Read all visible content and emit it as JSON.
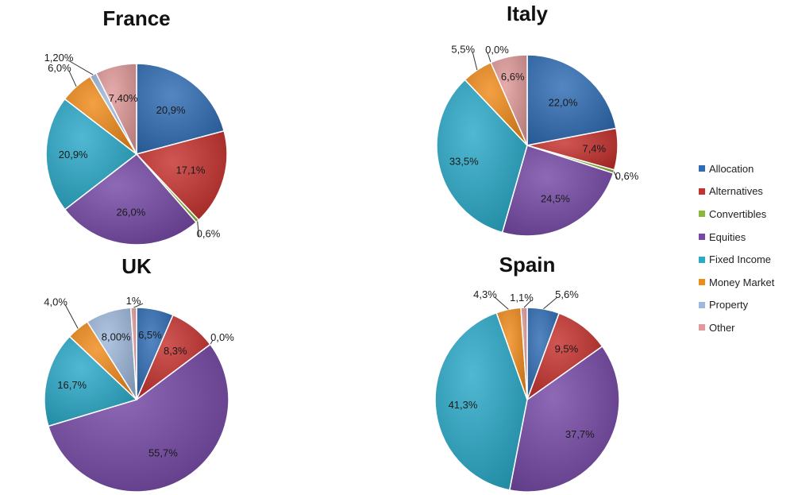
{
  "chart_data": [
    {
      "type": "pie",
      "title": "France",
      "slices": [
        {
          "category": "Allocation",
          "value": 20.9,
          "label": "20,9%"
        },
        {
          "category": "Alternatives",
          "value": 17.1,
          "label": "17,1%"
        },
        {
          "category": "Convertibles",
          "value": 0.6,
          "label": "0,6%"
        },
        {
          "category": "Equities",
          "value": 26.0,
          "label": "26,0%"
        },
        {
          "category": "Fixed Income",
          "value": 20.9,
          "label": "20,9%"
        },
        {
          "category": "Money Market",
          "value": 6.0,
          "label": "6,0%"
        },
        {
          "category": "Property",
          "value": 1.2,
          "label": "1,20%"
        },
        {
          "category": "Other",
          "value": 7.4,
          "label": "7,40%"
        }
      ]
    },
    {
      "type": "pie",
      "title": "Italy",
      "slices": [
        {
          "category": "Allocation",
          "value": 22.0,
          "label": "22,0%"
        },
        {
          "category": "Alternatives",
          "value": 7.4,
          "label": "7,4%"
        },
        {
          "category": "Convertibles",
          "value": 0.6,
          "label": "0,6%"
        },
        {
          "category": "Equities",
          "value": 24.5,
          "label": "24,5%"
        },
        {
          "category": "Fixed Income",
          "value": 33.5,
          "label": "33,5%"
        },
        {
          "category": "Money Market",
          "value": 5.5,
          "label": "5,5%"
        },
        {
          "category": "Property",
          "value": 0.0,
          "label": "0,0%"
        },
        {
          "category": "Other",
          "value": 6.6,
          "label": "6,6%"
        }
      ]
    },
    {
      "type": "pie",
      "title": "UK",
      "slices": [
        {
          "category": "Allocation",
          "value": 6.5,
          "label": "6,5%"
        },
        {
          "category": "Alternatives",
          "value": 8.3,
          "label": "8,3%"
        },
        {
          "category": "Convertibles",
          "value": 0.0,
          "label": "0,0%"
        },
        {
          "category": "Equities",
          "value": 55.7,
          "label": "55,7%"
        },
        {
          "category": "Fixed Income",
          "value": 16.7,
          "label": "16,7%"
        },
        {
          "category": "Money Market",
          "value": 4.0,
          "label": "4,0%"
        },
        {
          "category": "Property",
          "value": 8.0,
          "label": "8,00%"
        },
        {
          "category": "Other",
          "value": 1.0,
          "label": "1%"
        }
      ]
    },
    {
      "type": "pie",
      "title": "Spain",
      "slices": [
        {
          "category": "Allocation",
          "value": 5.6,
          "label": "5,6%"
        },
        {
          "category": "Alternatives",
          "value": 9.5,
          "label": "9,5%"
        },
        {
          "category": "Convertibles",
          "value": 0.0,
          "label": ""
        },
        {
          "category": "Equities",
          "value": 37.7,
          "label": "37,7%"
        },
        {
          "category": "Fixed Income",
          "value": 41.3,
          "label": "41,3%"
        },
        {
          "category": "Money Market",
          "value": 4.3,
          "label": "4,3%"
        },
        {
          "category": "Property",
          "value": 0.0,
          "label": ""
        },
        {
          "category": "Other",
          "value": 1.1,
          "label": "1,1%"
        }
      ]
    }
  ],
  "legend": {
    "placement": "right",
    "items": [
      {
        "label": "Allocation",
        "color": "#2e6db4"
      },
      {
        "label": "Alternatives",
        "color": "#c6312e"
      },
      {
        "label": "Convertibles",
        "color": "#8ab83d"
      },
      {
        "label": "Equities",
        "color": "#7548a6"
      },
      {
        "label": "Fixed Income",
        "color": "#2aa9c8"
      },
      {
        "label": "Money Market",
        "color": "#ef8b1a"
      },
      {
        "label": "Property",
        "color": "#9db8dc"
      },
      {
        "label": "Other",
        "color": "#e09a9a"
      }
    ]
  }
}
